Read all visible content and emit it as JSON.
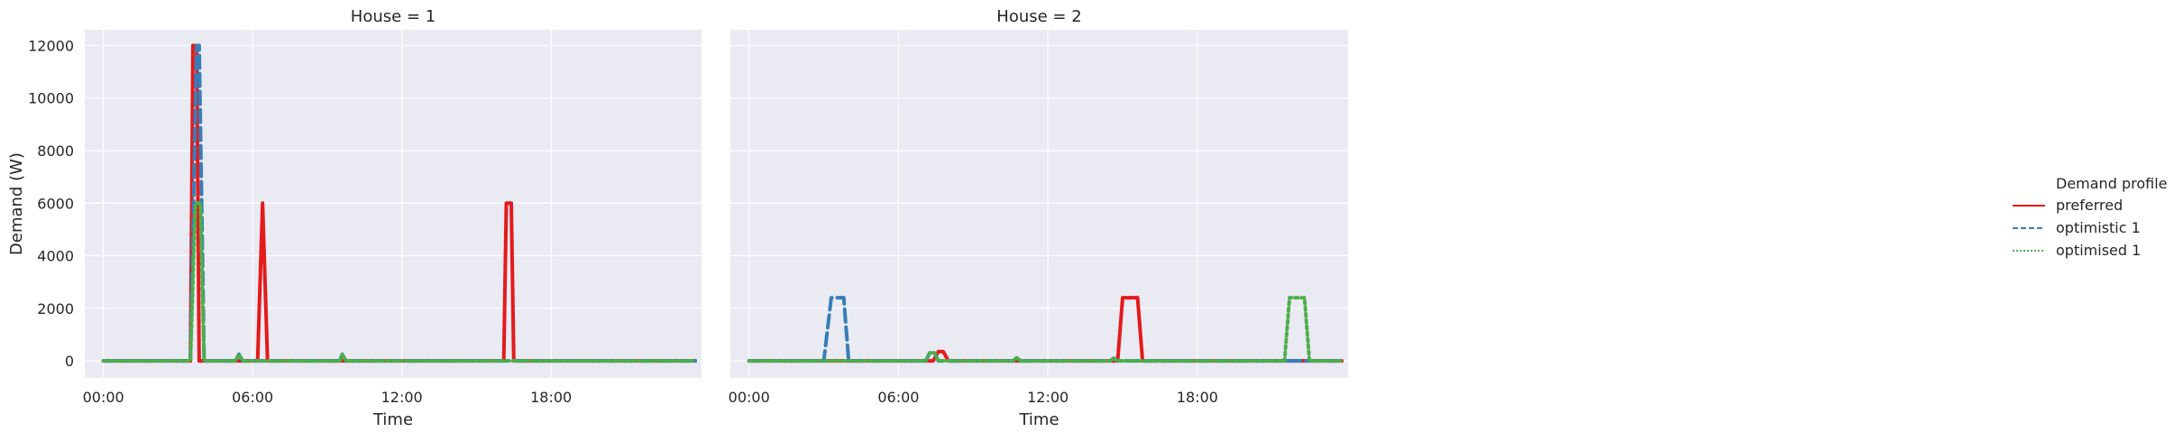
{
  "chart_data": [
    {
      "type": "line",
      "title": "House = 1",
      "xlabel": "Time",
      "ylabel": "Demand (W)",
      "x_unit": "hours",
      "xlim": [
        -0.75,
        24.05
      ],
      "ylim": [
        -650,
        12600
      ],
      "xticks": [
        0,
        6,
        12,
        18
      ],
      "xtick_labels": [
        "00:00",
        "06:00",
        "12:00",
        "18:00"
      ],
      "yticks": [
        0,
        2000,
        4000,
        6000,
        8000,
        10000,
        12000
      ],
      "ytick_labels": [
        "0",
        "2000",
        "4000",
        "6000",
        "8000",
        "10000",
        "12000"
      ],
      "grid": true,
      "series": [
        {
          "name": "preferred",
          "color": "#e41a1c",
          "dash": "solid",
          "x": [
            0,
            3.5,
            3.6,
            3.75,
            3.85,
            4.0,
            6.2,
            6.4,
            6.6,
            16.1,
            16.2,
            16.4,
            16.5,
            23.8
          ],
          "y": [
            0,
            0,
            12000,
            12000,
            0,
            0,
            0,
            6000,
            0,
            0,
            6000,
            6000,
            0,
            0
          ]
        },
        {
          "name": "optimistic 1",
          "color": "#377eb8",
          "dash": "dashed",
          "x": [
            0,
            3.5,
            3.75,
            3.85,
            4.05,
            5.3,
            5.45,
            5.6,
            9.5,
            9.6,
            9.75,
            23.8
          ],
          "y": [
            0,
            0,
            12000,
            12000,
            0,
            0,
            250,
            0,
            0,
            250,
            0,
            0
          ]
        },
        {
          "name": "optimised 1",
          "color": "#4daf4a",
          "dash": "dotted",
          "x": [
            0,
            3.5,
            3.7,
            3.9,
            4.05,
            4.15,
            5.3,
            5.45,
            5.6,
            9.5,
            9.6,
            9.75,
            23.8
          ],
          "y": [
            0,
            0,
            6000,
            6000,
            0,
            0,
            0,
            250,
            0,
            0,
            250,
            0,
            0
          ]
        }
      ]
    },
    {
      "type": "line",
      "title": "House = 2",
      "xlabel": "Time",
      "ylabel": "",
      "x_unit": "hours",
      "xlim": [
        -0.75,
        24.05
      ],
      "ylim": [
        -650,
        12600
      ],
      "xticks": [
        0,
        6,
        12,
        18
      ],
      "xtick_labels": [
        "00:00",
        "06:00",
        "12:00",
        "18:00"
      ],
      "yticks": [
        0,
        2000,
        4000,
        6000,
        8000,
        10000,
        12000
      ],
      "ytick_labels": [],
      "grid": true,
      "series": [
        {
          "name": "preferred",
          "color": "#e41a1c",
          "dash": "solid",
          "x": [
            0,
            7.4,
            7.6,
            7.8,
            8.0,
            14.8,
            15.0,
            15.6,
            15.8,
            23.8
          ],
          "y": [
            0,
            0,
            350,
            350,
            0,
            0,
            2400,
            2400,
            0,
            0
          ]
        },
        {
          "name": "optimistic 1",
          "color": "#377eb8",
          "dash": "dashed",
          "x": [
            0,
            3.0,
            3.3,
            3.8,
            4.0,
            7.1,
            7.25,
            7.45,
            7.6,
            10.6,
            10.75,
            10.9,
            14.5,
            14.65,
            14.8,
            23.8
          ],
          "y": [
            0,
            0,
            2400,
            2400,
            0,
            0,
            300,
            300,
            0,
            0,
            120,
            0,
            0,
            100,
            0,
            0
          ]
        },
        {
          "name": "optimised 1",
          "color": "#4daf4a",
          "dash": "dotted",
          "x": [
            0,
            7.1,
            7.25,
            7.45,
            7.6,
            10.6,
            10.75,
            10.9,
            14.5,
            14.65,
            14.8,
            21.5,
            21.7,
            22.3,
            22.5,
            23.8
          ],
          "y": [
            0,
            0,
            300,
            300,
            0,
            0,
            120,
            0,
            0,
            100,
            0,
            0,
            2400,
            2400,
            0,
            0
          ]
        }
      ]
    }
  ],
  "legend": {
    "title": "Demand profile",
    "placement": "right",
    "entries": [
      {
        "label": "preferred",
        "color": "#e41a1c",
        "dash": "solid"
      },
      {
        "label": "optimistic 1",
        "color": "#377eb8",
        "dash": "dashed"
      },
      {
        "label": "optimised 1",
        "color": "#4daf4a",
        "dash": "dotted"
      }
    ]
  },
  "colors": {
    "panel_background": "#eaeaf2",
    "grid": "#ffffff",
    "text": "#262626"
  }
}
